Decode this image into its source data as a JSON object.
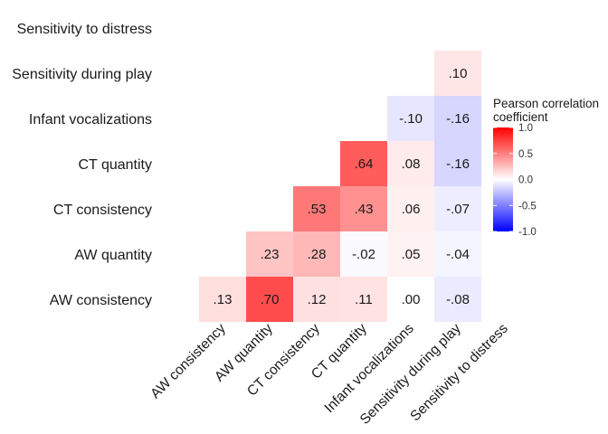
{
  "chart_data": {
    "type": "heatmap",
    "variables": [
      "AW consistency",
      "AW quantity",
      "CT consistency",
      "CT quantity",
      "Infant vocalizations",
      "Sensitivity during play",
      "Sensitivity to distress"
    ],
    "cells": [
      {
        "x": "AW consistency",
        "y": "AW consistency",
        "value": 0.13,
        "label": ".13"
      },
      {
        "x": "AW quantity",
        "y": "AW consistency",
        "value": 0.7,
        "label": ".70"
      },
      {
        "x": "CT consistency",
        "y": "AW consistency",
        "value": 0.12,
        "label": ".12"
      },
      {
        "x": "CT quantity",
        "y": "AW consistency",
        "value": 0.11,
        "label": ".11"
      },
      {
        "x": "Infant vocalizations",
        "y": "AW consistency",
        "value": 0.0,
        "label": ".00"
      },
      {
        "x": "Sensitivity during play",
        "y": "AW consistency",
        "value": -0.08,
        "label": "-.08"
      },
      {
        "x": "AW quantity",
        "y": "AW quantity",
        "value": 0.23,
        "label": ".23"
      },
      {
        "x": "CT consistency",
        "y": "AW quantity",
        "value": 0.28,
        "label": ".28"
      },
      {
        "x": "CT quantity",
        "y": "AW quantity",
        "value": -0.02,
        "label": "-.02"
      },
      {
        "x": "Infant vocalizations",
        "y": "AW quantity",
        "value": 0.05,
        "label": ".05"
      },
      {
        "x": "Sensitivity during play",
        "y": "AW quantity",
        "value": -0.04,
        "label": "-.04"
      },
      {
        "x": "CT consistency",
        "y": "CT consistency",
        "value": 0.53,
        "label": ".53"
      },
      {
        "x": "CT quantity",
        "y": "CT consistency",
        "value": 0.43,
        "label": ".43"
      },
      {
        "x": "Infant vocalizations",
        "y": "CT consistency",
        "value": 0.06,
        "label": ".06"
      },
      {
        "x": "Sensitivity during play",
        "y": "CT consistency",
        "value": -0.07,
        "label": "-.07"
      },
      {
        "x": "CT quantity",
        "y": "CT quantity",
        "value": 0.64,
        "label": ".64"
      },
      {
        "x": "Infant vocalizations",
        "y": "CT quantity",
        "value": 0.08,
        "label": ".08"
      },
      {
        "x": "Sensitivity during play",
        "y": "CT quantity",
        "value": -0.16,
        "label": "-.16"
      },
      {
        "x": "Infant vocalizations",
        "y": "Infant vocalizations",
        "value": -0.1,
        "label": "-.10"
      },
      {
        "x": "Sensitivity during play",
        "y": "Infant vocalizations",
        "value": -0.16,
        "label": "-.16"
      },
      {
        "x": "Sensitivity during play",
        "y": "Sensitivity during play",
        "value": 0.1,
        "label": ".10"
      }
    ],
    "legend": {
      "title_lines": [
        "Pearson correlation",
        "coefficient"
      ],
      "ticks": [
        {
          "value": 1.0,
          "label": "1.0"
        },
        {
          "value": 0.5,
          "label": "0.5"
        },
        {
          "value": 0.0,
          "label": "0.0"
        },
        {
          "value": -0.5,
          "label": "-0.5"
        },
        {
          "value": -1.0,
          "label": "-1.0"
        }
      ],
      "limits": [
        -1,
        1
      ],
      "placement": "right"
    },
    "colors": {
      "low": "#0000ff",
      "mid": "#ffffff",
      "high": "#ff0000"
    },
    "grid": false
  }
}
